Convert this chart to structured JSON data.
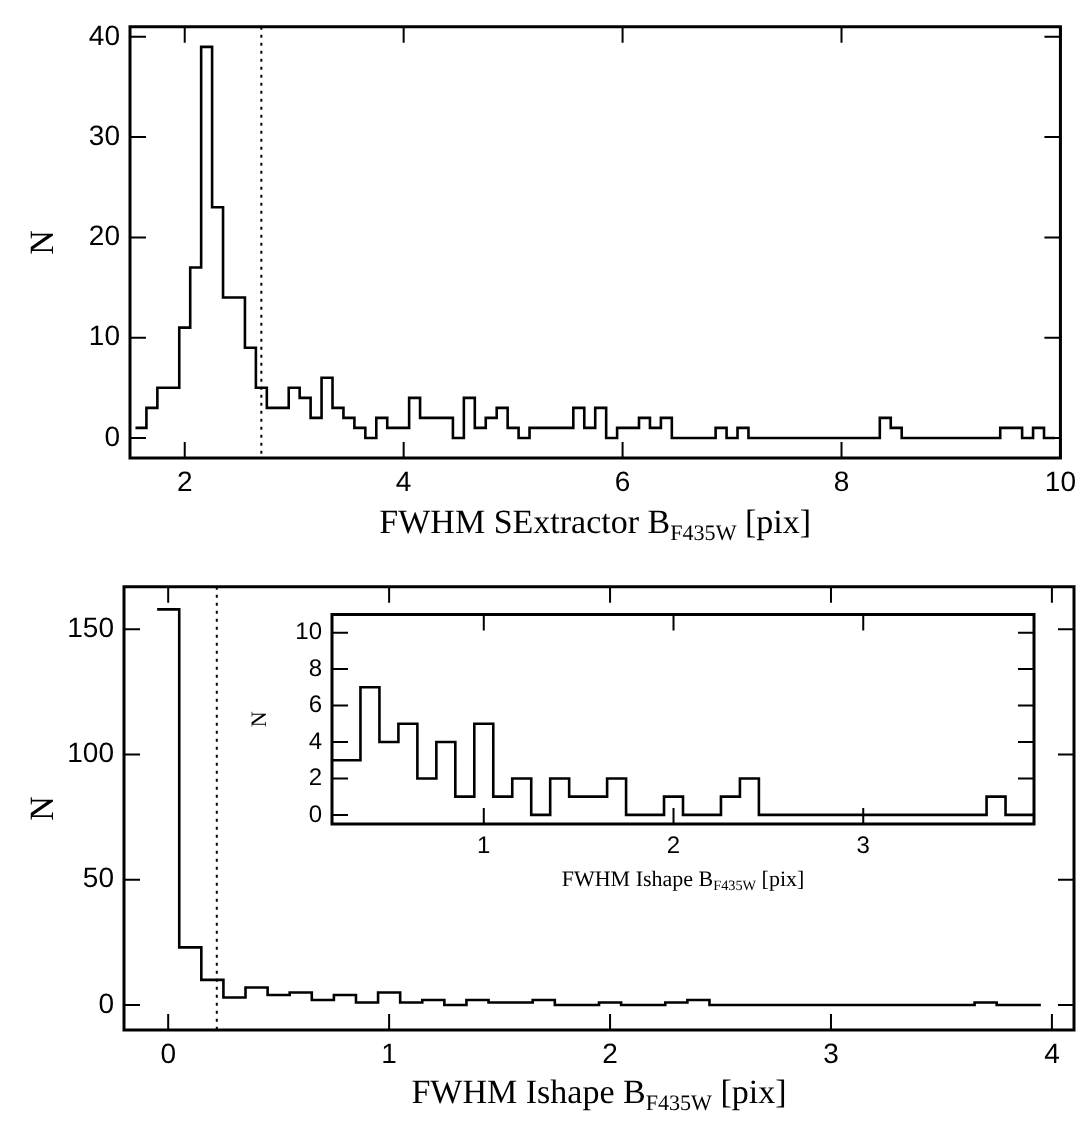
{
  "chart_data": [
    {
      "type": "histogram",
      "xlabel": "FWHM SExtractor B$_{F435W}$ [pix]",
      "ylabel": "N",
      "color": "#000000",
      "bins": [
        1.55,
        1.65,
        1.75,
        1.85,
        1.95,
        2.05,
        2.15,
        2.25,
        2.35,
        2.45,
        2.55,
        2.65,
        2.75,
        2.85,
        2.95,
        3.05,
        3.15,
        3.25,
        3.35,
        3.45,
        3.55,
        3.65,
        3.75,
        3.85,
        3.95,
        4.05,
        4.15,
        4.25,
        4.35,
        4.45,
        4.55,
        4.65,
        4.75,
        4.85,
        4.95,
        5.05,
        5.15,
        5.25,
        5.35,
        5.45,
        5.55,
        5.65,
        5.75,
        5.85,
        5.95,
        6.05,
        6.15,
        6.25,
        6.35,
        6.45,
        6.55,
        6.65,
        6.75,
        6.85,
        6.95,
        7.05,
        7.15,
        7.25,
        7.35,
        7.45,
        7.55,
        7.65,
        7.75,
        7.85,
        7.95,
        8.05,
        8.15,
        8.25,
        8.35,
        8.45,
        8.55,
        8.65,
        8.75,
        8.85,
        8.95,
        9.05,
        9.15,
        9.25,
        9.35,
        9.45,
        9.55,
        9.65,
        9.75,
        9.85,
        9.95
      ],
      "values": [
        1,
        3,
        5,
        5,
        11,
        17,
        39,
        23,
        14,
        14,
        9,
        5,
        3,
        3,
        5,
        4,
        2,
        6,
        3,
        2,
        1,
        0,
        2,
        1,
        1,
        4,
        2,
        2,
        2,
        0,
        4,
        1,
        2,
        3,
        1,
        0,
        1,
        1,
        1,
        1,
        3,
        1,
        3,
        0,
        1,
        1,
        2,
        1,
        2,
        0,
        0,
        0,
        0,
        1,
        0,
        1,
        0,
        0,
        0,
        0,
        0,
        0,
        0,
        0,
        0,
        0,
        0,
        0,
        2,
        1,
        0,
        0,
        0,
        0,
        0,
        0,
        0,
        0,
        0,
        1,
        1,
        0,
        1,
        0
      ],
      "xlim": [
        1.5,
        10
      ],
      "ylim": [
        -2,
        41
      ],
      "xticks": [
        2,
        4,
        6,
        8,
        10
      ],
      "yticks": [
        0,
        10,
        20,
        30,
        40
      ],
      "ref_lines": [
        {
          "axis": "x",
          "value": 2.7,
          "line_style": "dotted"
        }
      ]
    },
    {
      "type": "histogram",
      "xlabel": "FWHM Ishape B$_{F435W}$ [pix]",
      "ylabel": "N",
      "color": "#000000",
      "bins": [
        -0.05,
        0.05,
        0.15,
        0.25,
        0.35,
        0.45,
        0.55,
        0.65,
        0.75,
        0.85,
        0.95,
        1.05,
        1.15,
        1.25,
        1.35,
        1.45,
        1.55,
        1.65,
        1.75,
        1.85,
        1.95,
        2.05,
        2.15,
        2.25,
        2.35,
        2.45,
        2.55,
        2.65,
        2.75,
        2.85,
        2.95,
        3.05,
        3.15,
        3.25,
        3.35,
        3.45,
        3.55,
        3.65,
        3.75,
        3.85,
        3.95
      ],
      "values": [
        158,
        23,
        10,
        3,
        7,
        4,
        5,
        2,
        4,
        1,
        5,
        1,
        2,
        0,
        2,
        1,
        1,
        2,
        0,
        0,
        1,
        0,
        0,
        1,
        2,
        0,
        0,
        0,
        0,
        0,
        0,
        0,
        0,
        0,
        0,
        0,
        0,
        1,
        0,
        0
      ],
      "xlim": [
        -0.2,
        4.1
      ],
      "ylim": [
        -10,
        167
      ],
      "xticks": [
        0,
        1,
        2,
        3,
        4
      ],
      "yticks": [
        0,
        50,
        100,
        150
      ],
      "ref_lines": [
        {
          "axis": "x",
          "value": 0.22,
          "line_style": "dotted"
        }
      ]
    },
    {
      "type": "histogram",
      "xlabel": "FWHM Ishape B$_{F435W}$ [pix]",
      "ylabel": "N",
      "color": "#000000",
      "bins": [
        0.2,
        0.25,
        0.35,
        0.45,
        0.55,
        0.65,
        0.75,
        0.85,
        0.95,
        1.05,
        1.15,
        1.25,
        1.35,
        1.45,
        1.55,
        1.65,
        1.75,
        1.85,
        1.95,
        2.05,
        2.15,
        2.25,
        2.35,
        2.45,
        2.55,
        2.65,
        2.75,
        2.85,
        2.95,
        3.05,
        3.15,
        3.25,
        3.35,
        3.45,
        3.55,
        3.65,
        3.75,
        3.85,
        3.9
      ],
      "values": [
        3,
        3,
        7,
        4,
        5,
        2,
        4,
        1,
        5,
        1,
        2,
        0,
        2,
        1,
        1,
        2,
        0,
        0,
        1,
        0,
        0,
        1,
        2,
        0,
        0,
        0,
        0,
        0,
        0,
        0,
        0,
        0,
        0,
        0,
        0,
        1,
        0,
        0
      ],
      "xlim": [
        0.2,
        3.9
      ],
      "ylim": [
        -0.5,
        11
      ],
      "xticks": [
        1,
        2,
        3
      ],
      "yticks": [
        0,
        2,
        4,
        6,
        8,
        10
      ]
    }
  ]
}
